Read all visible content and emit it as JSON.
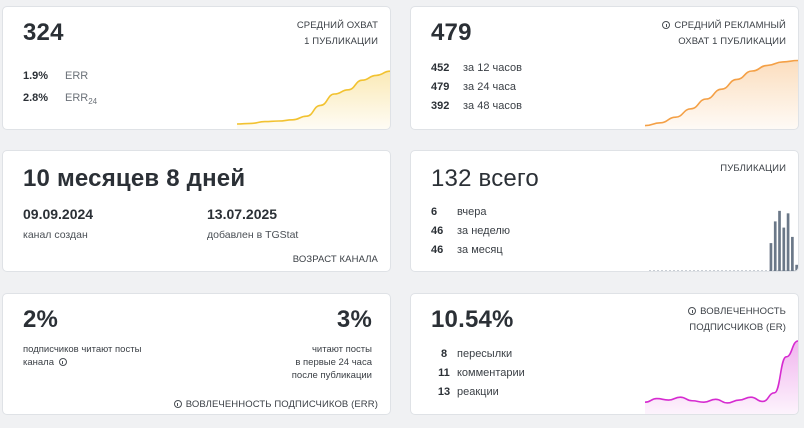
{
  "reach_card": {
    "value": "324",
    "title_line1": "СРЕДНИЙ ОХВАТ",
    "title_line2": "1 ПУБЛИКАЦИИ",
    "rows": [
      {
        "value": "1.9%",
        "label": "ERR",
        "sub": ""
      },
      {
        "value": "2.8%",
        "label": "ERR",
        "sub": "24"
      }
    ],
    "trend": [
      0.05,
      0.06,
      0.09,
      0.1,
      0.12,
      0.18,
      0.36,
      0.55,
      0.62,
      0.78,
      0.86,
      0.93
    ],
    "color": "#f2c230"
  },
  "ad_reach_card": {
    "value": "479",
    "title_line1": "СРЕДНИЙ РЕКЛАМНЫЙ",
    "title_line2": "ОХВАТ 1 ПУБЛИКАЦИИ",
    "rows": [
      {
        "value": "452",
        "label": "за 12 часов"
      },
      {
        "value": "479",
        "label": "за 24 часа"
      },
      {
        "value": "392",
        "label": "за 48 часов"
      }
    ],
    "trend": [
      0.02,
      0.06,
      0.14,
      0.26,
      0.4,
      0.54,
      0.68,
      0.8,
      0.88,
      0.93,
      0.95
    ],
    "color": "#f4a046"
  },
  "age_card": {
    "value": "10 месяцев 8 дней",
    "created_date": "09.09.2024",
    "created_label": "канал создан",
    "added_date": "13.07.2025",
    "added_label": "добавлен в TGStat",
    "footer": "ВОЗРАСТ КАНАЛА"
  },
  "posts_card": {
    "value": "132 всего",
    "title": "ПУБЛИКАЦИИ",
    "rows": [
      {
        "value": "6",
        "label": "вчера"
      },
      {
        "value": "46",
        "label": "за неделю"
      },
      {
        "value": "46",
        "label": "за месяц"
      }
    ],
    "bars": [
      0,
      0,
      0,
      0,
      0,
      0,
      0,
      0,
      0,
      0,
      0,
      0,
      0,
      0,
      0,
      0,
      0,
      0,
      0,
      0,
      0,
      0,
      0,
      0,
      0,
      0,
      0,
      0,
      0.45,
      0.8,
      0.97,
      0.7,
      0.93,
      0.55,
      0.1
    ],
    "color": "#6b7888"
  },
  "err_card": {
    "left_value": "2%",
    "left_text_line1": "подписчиков читают посты",
    "left_text_line2": "канала",
    "right_value": "3%",
    "right_text_line1": "читают посты",
    "right_text_line2": "в первые 24 часа",
    "right_text_line3": "после публикации",
    "footer": "ВОВЛЕЧЕННОСТЬ ПОДПИСЧИКОВ (ERR)"
  },
  "er_card": {
    "value": "10.54%",
    "title_line1": "ВОВЛЕЧЕННОСТЬ",
    "title_line2": "ПОДПИСЧИКОВ (ER)",
    "rows": [
      {
        "value": "8",
        "label": "пересылки"
      },
      {
        "value": "11",
        "label": "комментарии"
      },
      {
        "value": "13",
        "label": "реакции"
      }
    ],
    "trend": [
      0.15,
      0.2,
      0.18,
      0.22,
      0.17,
      0.15,
      0.19,
      0.14,
      0.18,
      0.22,
      0.16,
      0.28,
      0.78,
      1.0
    ],
    "color": "#d62bd0"
  }
}
